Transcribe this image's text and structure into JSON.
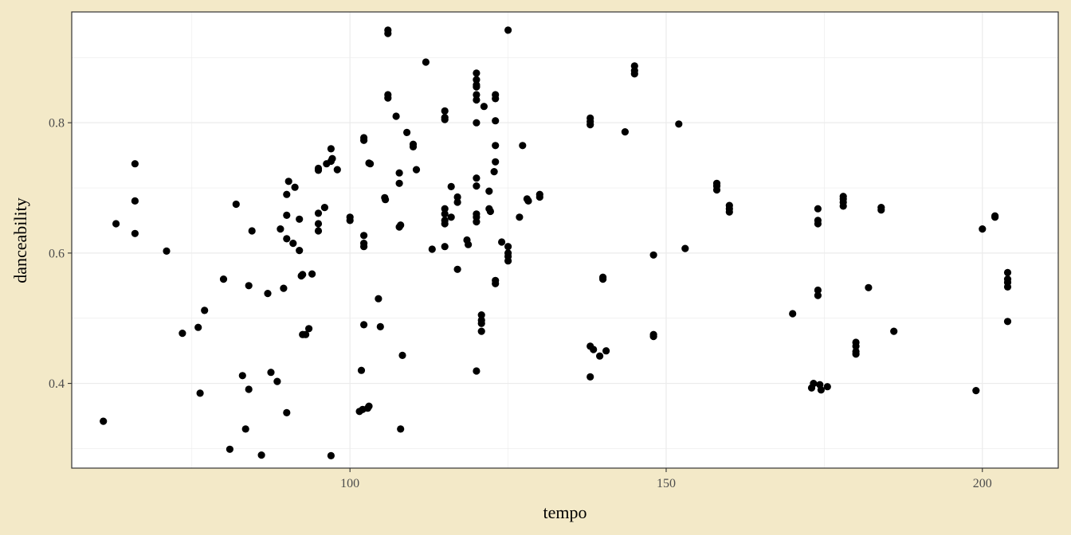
{
  "chart_data": {
    "type": "scatter",
    "xlabel": "tempo",
    "ylabel": "danceability",
    "xlim": [
      56,
      212
    ],
    "ylim": [
      0.27,
      0.97
    ],
    "x_ticks": [
      100,
      150,
      200
    ],
    "x_tick_labels": [
      "100",
      "150",
      "200"
    ],
    "y_ticks": [
      0.4,
      0.6,
      0.8
    ],
    "y_tick_labels": [
      "0.4",
      "0.6",
      "0.8"
    ],
    "grid": true,
    "colors": {
      "background": "#f3e9c8",
      "panel": "#ffffff",
      "grid": "#ebebeb",
      "point": "#000000"
    },
    "points": [
      [
        61,
        0.342
      ],
      [
        63,
        0.645
      ],
      [
        66,
        0.737
      ],
      [
        66,
        0.68
      ],
      [
        66,
        0.63
      ],
      [
        71,
        0.603
      ],
      [
        73.5,
        0.477
      ],
      [
        76,
        0.486
      ],
      [
        76.3,
        0.385
      ],
      [
        77,
        0.512
      ],
      [
        80,
        0.56
      ],
      [
        81,
        0.299
      ],
      [
        82,
        0.675
      ],
      [
        83,
        0.412
      ],
      [
        83.5,
        0.33
      ],
      [
        84,
        0.391
      ],
      [
        84,
        0.55
      ],
      [
        84.5,
        0.634
      ],
      [
        86,
        0.29
      ],
      [
        87,
        0.538
      ],
      [
        87.5,
        0.417
      ],
      [
        88.5,
        0.403
      ],
      [
        89,
        0.637
      ],
      [
        89.5,
        0.546
      ],
      [
        90,
        0.69
      ],
      [
        90,
        0.658
      ],
      [
        90,
        0.622
      ],
      [
        90.3,
        0.71
      ],
      [
        90,
        0.355
      ],
      [
        91,
        0.615
      ],
      [
        91.3,
        0.701
      ],
      [
        92,
        0.652
      ],
      [
        92,
        0.604
      ],
      [
        92.3,
        0.565
      ],
      [
        92.5,
        0.567
      ],
      [
        92.5,
        0.475
      ],
      [
        93,
        0.475
      ],
      [
        93.5,
        0.484
      ],
      [
        94,
        0.568
      ],
      [
        95,
        0.727
      ],
      [
        95,
        0.73
      ],
      [
        95,
        0.661
      ],
      [
        95,
        0.645
      ],
      [
        95,
        0.634
      ],
      [
        96,
        0.67
      ],
      [
        96.3,
        0.737
      ],
      [
        97,
        0.741
      ],
      [
        97,
        0.76
      ],
      [
        97.2,
        0.745
      ],
      [
        97,
        0.289
      ],
      [
        98,
        0.728
      ],
      [
        100,
        0.655
      ],
      [
        100,
        0.65
      ],
      [
        101.5,
        0.357
      ],
      [
        101.8,
        0.42
      ],
      [
        102,
        0.36
      ],
      [
        102.2,
        0.777
      ],
      [
        102.2,
        0.773
      ],
      [
        102.2,
        0.627
      ],
      [
        102.2,
        0.615
      ],
      [
        102.2,
        0.61
      ],
      [
        102.2,
        0.49
      ],
      [
        102.8,
        0.362
      ],
      [
        103,
        0.365
      ],
      [
        103,
        0.738
      ],
      [
        103.2,
        0.737
      ],
      [
        104.5,
        0.53
      ],
      [
        104.8,
        0.487
      ],
      [
        105.5,
        0.685
      ],
      [
        105.6,
        0.682
      ],
      [
        106,
        0.942
      ],
      [
        106,
        0.937
      ],
      [
        106,
        0.843
      ],
      [
        106,
        0.838
      ],
      [
        107.3,
        0.81
      ],
      [
        107.8,
        0.723
      ],
      [
        107.8,
        0.707
      ],
      [
        107.8,
        0.64
      ],
      [
        108,
        0.643
      ],
      [
        108,
        0.33
      ],
      [
        108.3,
        0.443
      ],
      [
        109,
        0.785
      ],
      [
        110,
        0.767
      ],
      [
        110,
        0.763
      ],
      [
        110.5,
        0.728
      ],
      [
        112,
        0.893
      ],
      [
        113,
        0.606
      ],
      [
        115,
        0.818
      ],
      [
        115,
        0.808
      ],
      [
        115,
        0.805
      ],
      [
        115,
        0.668
      ],
      [
        115,
        0.66
      ],
      [
        115,
        0.65
      ],
      [
        115,
        0.645
      ],
      [
        115,
        0.61
      ],
      [
        116,
        0.702
      ],
      [
        116,
        0.655
      ],
      [
        117,
        0.686
      ],
      [
        117,
        0.678
      ],
      [
        117,
        0.575
      ],
      [
        118.5,
        0.62
      ],
      [
        118.7,
        0.613
      ],
      [
        120,
        0.876
      ],
      [
        120,
        0.866
      ],
      [
        120,
        0.858
      ],
      [
        120,
        0.855
      ],
      [
        120,
        0.843
      ],
      [
        120,
        0.835
      ],
      [
        120,
        0.8
      ],
      [
        120,
        0.715
      ],
      [
        120,
        0.703
      ],
      [
        120,
        0.66
      ],
      [
        120,
        0.655
      ],
      [
        120,
        0.648
      ],
      [
        120,
        0.419
      ],
      [
        120.8,
        0.505
      ],
      [
        120.8,
        0.497
      ],
      [
        120.8,
        0.492
      ],
      [
        120.8,
        0.48
      ],
      [
        121.2,
        0.825
      ],
      [
        122,
        0.695
      ],
      [
        122,
        0.668
      ],
      [
        122.2,
        0.664
      ],
      [
        122.8,
        0.725
      ],
      [
        123,
        0.843
      ],
      [
        123,
        0.837
      ],
      [
        123,
        0.803
      ],
      [
        123,
        0.765
      ],
      [
        123,
        0.74
      ],
      [
        123,
        0.558
      ],
      [
        123,
        0.553
      ],
      [
        124,
        0.617
      ],
      [
        125,
        0.942
      ],
      [
        125,
        0.61
      ],
      [
        125,
        0.6
      ],
      [
        125,
        0.595
      ],
      [
        125,
        0.588
      ],
      [
        126.8,
        0.655
      ],
      [
        127.3,
        0.765
      ],
      [
        128,
        0.683
      ],
      [
        128.2,
        0.68
      ],
      [
        130,
        0.69
      ],
      [
        130,
        0.686
      ],
      [
        138,
        0.807
      ],
      [
        138,
        0.802
      ],
      [
        138,
        0.797
      ],
      [
        138,
        0.457
      ],
      [
        138,
        0.41
      ],
      [
        138.5,
        0.452
      ],
      [
        139.5,
        0.442
      ],
      [
        140,
        0.563
      ],
      [
        140,
        0.56
      ],
      [
        140.5,
        0.45
      ],
      [
        143.5,
        0.786
      ],
      [
        145,
        0.887
      ],
      [
        145,
        0.88
      ],
      [
        145,
        0.875
      ],
      [
        148,
        0.597
      ],
      [
        148,
        0.475
      ],
      [
        148,
        0.472
      ],
      [
        152,
        0.798
      ],
      [
        153,
        0.607
      ],
      [
        158,
        0.707
      ],
      [
        158,
        0.703
      ],
      [
        158,
        0.697
      ],
      [
        160,
        0.673
      ],
      [
        160,
        0.668
      ],
      [
        160,
        0.663
      ],
      [
        170,
        0.507
      ],
      [
        173,
        0.393
      ],
      [
        173.3,
        0.4
      ],
      [
        174,
        0.668
      ],
      [
        174,
        0.65
      ],
      [
        174,
        0.645
      ],
      [
        174,
        0.543
      ],
      [
        174,
        0.535
      ],
      [
        174.3,
        0.398
      ],
      [
        174.5,
        0.39
      ],
      [
        175.5,
        0.395
      ],
      [
        178,
        0.687
      ],
      [
        178,
        0.683
      ],
      [
        178,
        0.678
      ],
      [
        178,
        0.672
      ],
      [
        180,
        0.463
      ],
      [
        180,
        0.457
      ],
      [
        180,
        0.449
      ],
      [
        180,
        0.445
      ],
      [
        182,
        0.547
      ],
      [
        184,
        0.67
      ],
      [
        184,
        0.666
      ],
      [
        186,
        0.48
      ],
      [
        199,
        0.389
      ],
      [
        200,
        0.637
      ],
      [
        202,
        0.657
      ],
      [
        202,
        0.655
      ],
      [
        204,
        0.57
      ],
      [
        204,
        0.56
      ],
      [
        204,
        0.555
      ],
      [
        204,
        0.548
      ],
      [
        204,
        0.495
      ]
    ]
  }
}
